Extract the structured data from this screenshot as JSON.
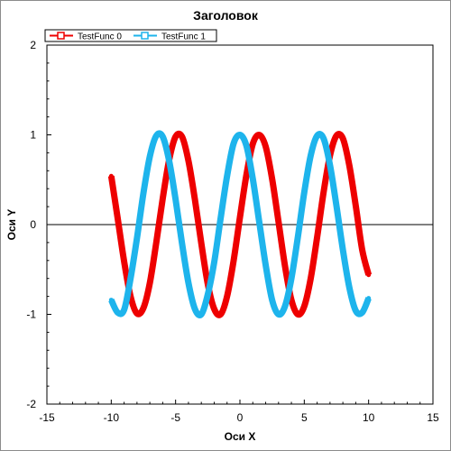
{
  "chart_data": {
    "type": "line",
    "title": "Заголовок",
    "xlabel": "Оси X",
    "ylabel": "Оси Y",
    "xlim": [
      -15,
      15
    ],
    "ylim": [
      -2,
      2
    ],
    "x_ticks": [
      "-15",
      "-10",
      "-5",
      "0",
      "5",
      "10",
      "15"
    ],
    "y_ticks": [
      "2",
      "1",
      "0",
      "-1",
      "-2"
    ],
    "grid": false,
    "zero_line": true,
    "legend_placement": "top-left",
    "series": [
      {
        "name": "TestFunc 0",
        "color": "#ee0000",
        "marker": "square",
        "x": [
          -10,
          -9.5,
          -9,
          -8.5,
          -8,
          -7.5,
          -7,
          -6.5,
          -6,
          -5.5,
          -5,
          -4.5,
          -4,
          -3.5,
          -3,
          -2.5,
          -2,
          -1.5,
          -1,
          -0.5,
          0,
          0.5,
          1,
          1.5,
          2,
          2.5,
          3,
          3.5,
          4,
          4.5,
          5,
          5.5,
          6,
          6.5,
          7,
          7.5,
          8,
          8.5,
          9,
          9.5,
          10
        ],
        "y": [
          0.54,
          0.07,
          -0.41,
          -0.8,
          -0.99,
          -0.93,
          -0.65,
          -0.2,
          0.29,
          0.72,
          0.98,
          0.98,
          0.71,
          0.28,
          -0.21,
          -0.66,
          -0.94,
          -1.0,
          -0.8,
          -0.41,
          0.08,
          0.55,
          0.9,
          1.0,
          0.87,
          0.51,
          0.03,
          -0.46,
          -0.84,
          -1.0,
          -0.91,
          -0.6,
          -0.14,
          0.36,
          0.77,
          0.99,
          0.96,
          0.66,
          0.21,
          -0.28,
          -0.56
        ]
      },
      {
        "name": "TestFunc 1",
        "color": "#1eb4ec",
        "marker": "square",
        "x": [
          -10,
          -9.5,
          -9,
          -8.5,
          -8,
          -7.5,
          -7,
          -6.5,
          -6,
          -5.5,
          -5,
          -4.5,
          -4,
          -3.5,
          -3,
          -2.5,
          -2,
          -1.5,
          -1,
          -0.5,
          0,
          0.5,
          1,
          1.5,
          2,
          2.5,
          3,
          3.5,
          4,
          4.5,
          5,
          5.5,
          6,
          6.5,
          7,
          7.5,
          8,
          8.5,
          9,
          9.5,
          10
        ],
        "y": [
          -0.84,
          -0.98,
          -0.95,
          -0.6,
          -0.15,
          0.35,
          0.76,
          0.99,
          0.98,
          0.71,
          0.28,
          -0.21,
          -0.65,
          -0.94,
          -1.0,
          -0.78,
          -0.42,
          0.07,
          0.54,
          0.9,
          1.0,
          0.88,
          0.51,
          0.03,
          -0.45,
          -0.84,
          -1.0,
          -0.91,
          -0.6,
          -0.14,
          0.36,
          0.77,
          0.99,
          0.96,
          0.66,
          0.21,
          -0.28,
          -0.7,
          -0.96,
          -0.98,
          -0.82
        ]
      }
    ]
  }
}
